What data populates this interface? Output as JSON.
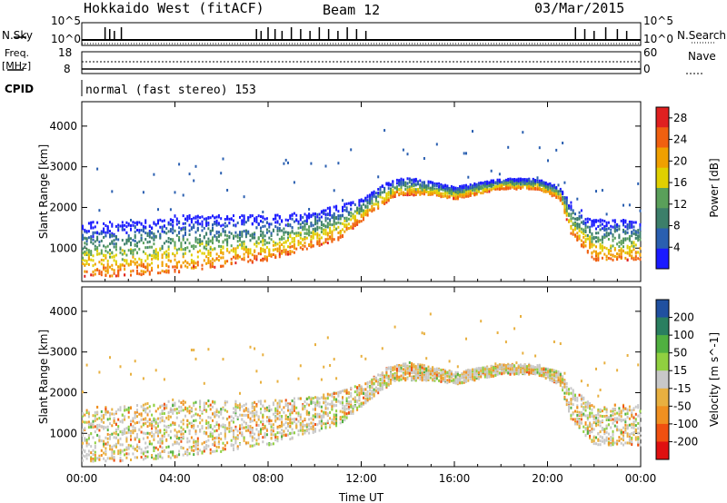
{
  "header": {
    "station": "Hokkaido West (fitACF)",
    "beam": "Beam 12",
    "date": "03/Mar/2015"
  },
  "strip_labels": {
    "nsky": "N.Sky",
    "nsearch": "N.Search",
    "freq": "Freq.",
    "freq_unit": "[MHz]",
    "nave": "Nave",
    "cpid": "CPID",
    "cpid_text": "normal (fast stereo) 153",
    "noise_ticks": [
      "10^5",
      "10^0"
    ],
    "freq_ticks": [
      "18",
      "8"
    ],
    "nave_ticks": [
      "60",
      "0"
    ]
  },
  "colors": {
    "power_scale": [
      "#1a1aff",
      "#2a5fb0",
      "#3c7f6a",
      "#5aa05a",
      "#e0d000",
      "#f0a000",
      "#f06010",
      "#e02020"
    ],
    "velocity_scale": [
      "#e01010",
      "#f05010",
      "#f09020",
      "#e8b040",
      "#c8c8c8",
      "#90d040",
      "#50b040",
      "#2a7f60",
      "#2050a0"
    ]
  },
  "chart_data": [
    {
      "type": "heatmap",
      "panel": "power",
      "xlabel": "",
      "ylabel": "Slant Range [km]",
      "x_ticks": [
        "00:00",
        "04:00",
        "08:00",
        "12:00",
        "16:00",
        "20:00",
        "00:00"
      ],
      "xlim_hours": [
        0,
        24
      ],
      "y_ticks": [
        1000,
        2000,
        3000,
        4000
      ],
      "ylim": [
        180,
        4600
      ],
      "colorbar_label": "Power [dB]",
      "colorbar_ticks": [
        4,
        8,
        12,
        16,
        20,
        24,
        28
      ],
      "colorbar_range": [
        0,
        30
      ],
      "scatter_upper_edge_km": [
        [
          0,
          1650
        ],
        [
          1.5,
          1650
        ],
        [
          4,
          1800
        ],
        [
          8,
          1800
        ],
        [
          10,
          1900
        ],
        [
          12,
          2200
        ],
        [
          13,
          2600
        ],
        [
          14,
          2750
        ],
        [
          16,
          2500
        ],
        [
          18,
          2700
        ],
        [
          19.5,
          2700
        ],
        [
          20.5,
          2500
        ],
        [
          21,
          2100
        ],
        [
          22,
          1700
        ],
        [
          24,
          1700
        ]
      ],
      "scatter_lower_edge_km": [
        [
          0,
          300
        ],
        [
          1.5,
          300
        ],
        [
          4,
          400
        ],
        [
          8,
          700
        ],
        [
          11,
          1200
        ],
        [
          12.5,
          1900
        ],
        [
          13.5,
          2300
        ],
        [
          15,
          2300
        ],
        [
          16,
          2200
        ],
        [
          18,
          2450
        ],
        [
          19.5,
          2450
        ],
        [
          20.5,
          2200
        ],
        [
          21,
          1300
        ],
        [
          22,
          700
        ],
        [
          24,
          700
        ]
      ]
    },
    {
      "type": "heatmap",
      "panel": "velocity",
      "xlabel": "Time UT",
      "ylabel": "Slant Range [km]",
      "x_ticks": [
        "00:00",
        "04:00",
        "08:00",
        "12:00",
        "16:00",
        "20:00",
        "00:00"
      ],
      "xlim_hours": [
        0,
        24
      ],
      "y_ticks": [
        1000,
        2000,
        3000,
        4000
      ],
      "ylim": [
        180,
        4600
      ],
      "colorbar_label": "Velocity [m s^-1]",
      "colorbar_ticks": [
        200,
        100,
        50,
        15,
        -15,
        -50,
        -100,
        -200
      ],
      "scatter_upper_edge_km": [
        [
          0,
          1650
        ],
        [
          1.5,
          1650
        ],
        [
          4,
          1800
        ],
        [
          8,
          1800
        ],
        [
          10,
          1900
        ],
        [
          12,
          2200
        ],
        [
          13,
          2600
        ],
        [
          14,
          2750
        ],
        [
          16,
          2500
        ],
        [
          18,
          2700
        ],
        [
          19.5,
          2700
        ],
        [
          20.5,
          2500
        ],
        [
          21,
          2100
        ],
        [
          22,
          1700
        ],
        [
          24,
          1700
        ]
      ],
      "scatter_lower_edge_km": [
        [
          0,
          300
        ],
        [
          1.5,
          300
        ],
        [
          4,
          400
        ],
        [
          8,
          700
        ],
        [
          11,
          1200
        ],
        [
          12.5,
          1900
        ],
        [
          13.5,
          2300
        ],
        [
          15,
          2300
        ],
        [
          16,
          2200
        ],
        [
          18,
          2450
        ],
        [
          19.5,
          2450
        ],
        [
          20.5,
          2200
        ],
        [
          21,
          1300
        ],
        [
          22,
          700
        ],
        [
          24,
          700
        ]
      ]
    }
  ]
}
